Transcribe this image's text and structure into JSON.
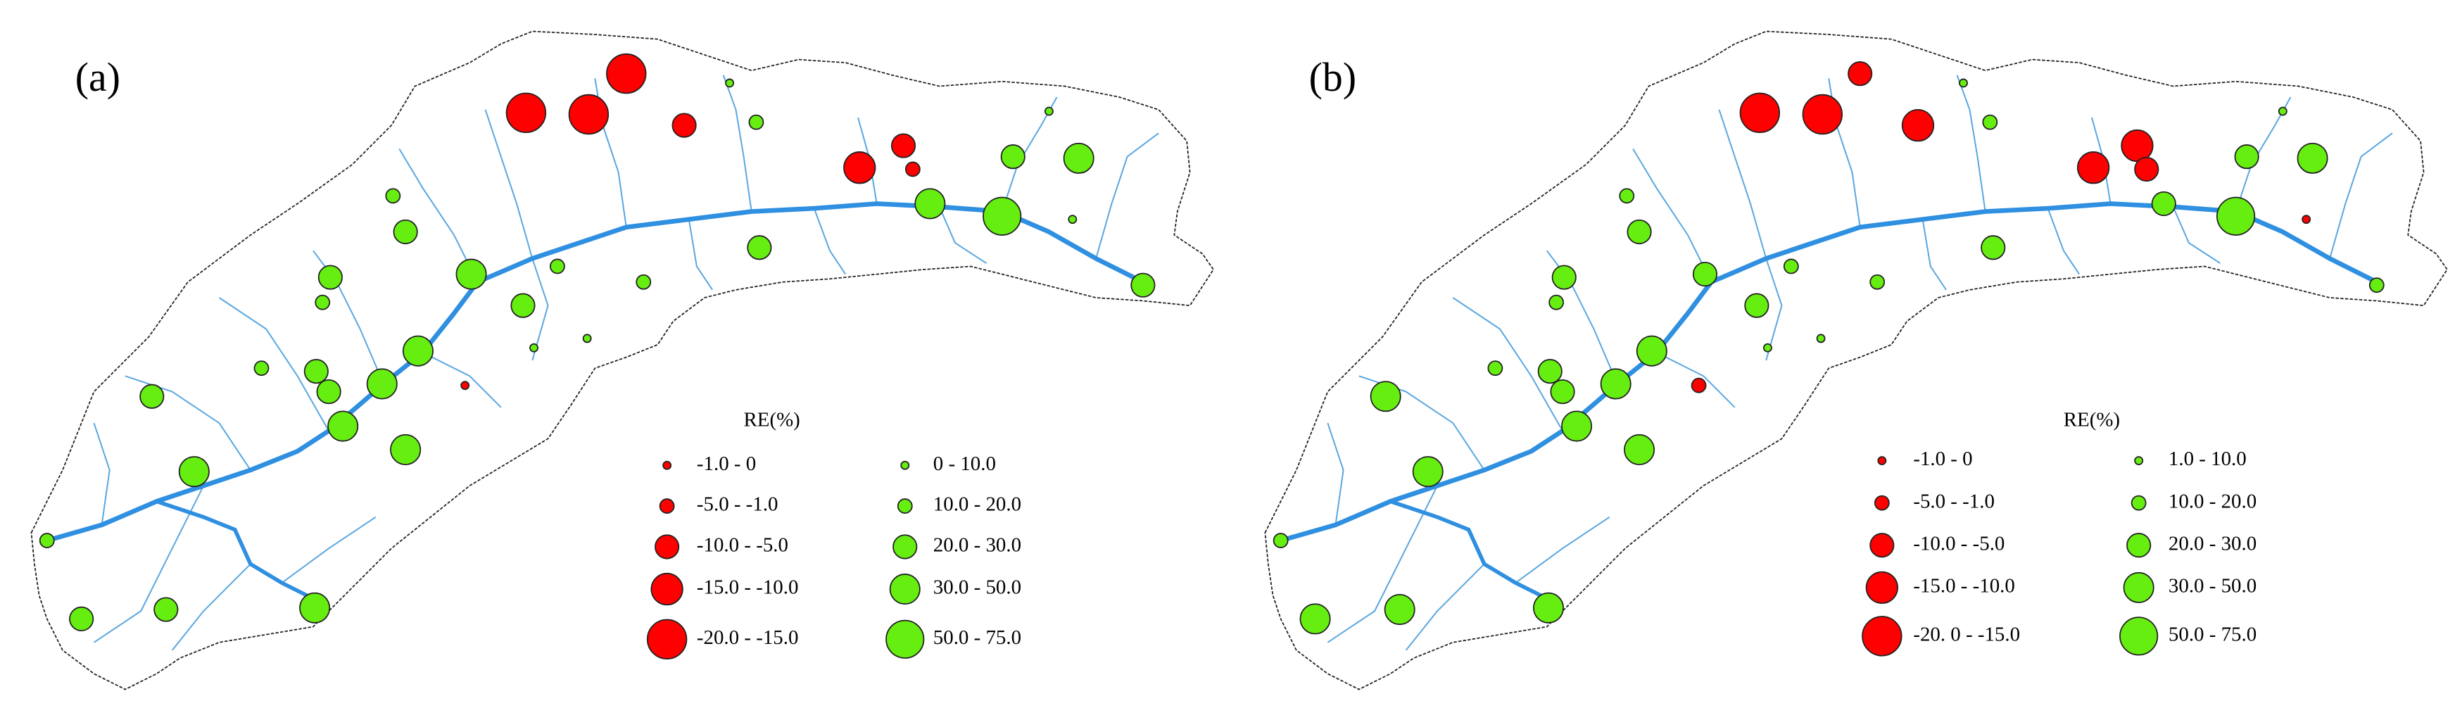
{
  "panels": [
    {
      "label": "(a)",
      "legend": {
        "title": "RE(%)",
        "negative": {
          "color": "#ff0000",
          "items": [
            "-1.0 - 0",
            "-5.0 - -1.0",
            "-10.0 - -5.0",
            "-15.0 - -10.0",
            "-20.0 - -15.0"
          ]
        },
        "positive": {
          "color": "#66ee11",
          "items": [
            "0 - 10.0",
            "10.0 - 20.0",
            "20.0 - 30.0",
            "30.0 - 50.0",
            "50.0 - 75.0"
          ]
        }
      }
    },
    {
      "label": "(b)",
      "legend": {
        "title": "RE(%)",
        "negative": {
          "color": "#ff0000",
          "items": [
            "-1.0 - 0",
            "-5.0 - -1.0",
            "-10.0 - -5.0",
            "-15.0 - -10.0",
            "-20. 0 - -15.0"
          ]
        },
        "positive": {
          "color": "#66ee11",
          "items": [
            "1.0 - 10.0",
            "10.0 - 20.0",
            "20.0 - 30.0",
            "30.0 - 50.0",
            "50.0 - 75.0"
          ]
        }
      }
    }
  ]
}
